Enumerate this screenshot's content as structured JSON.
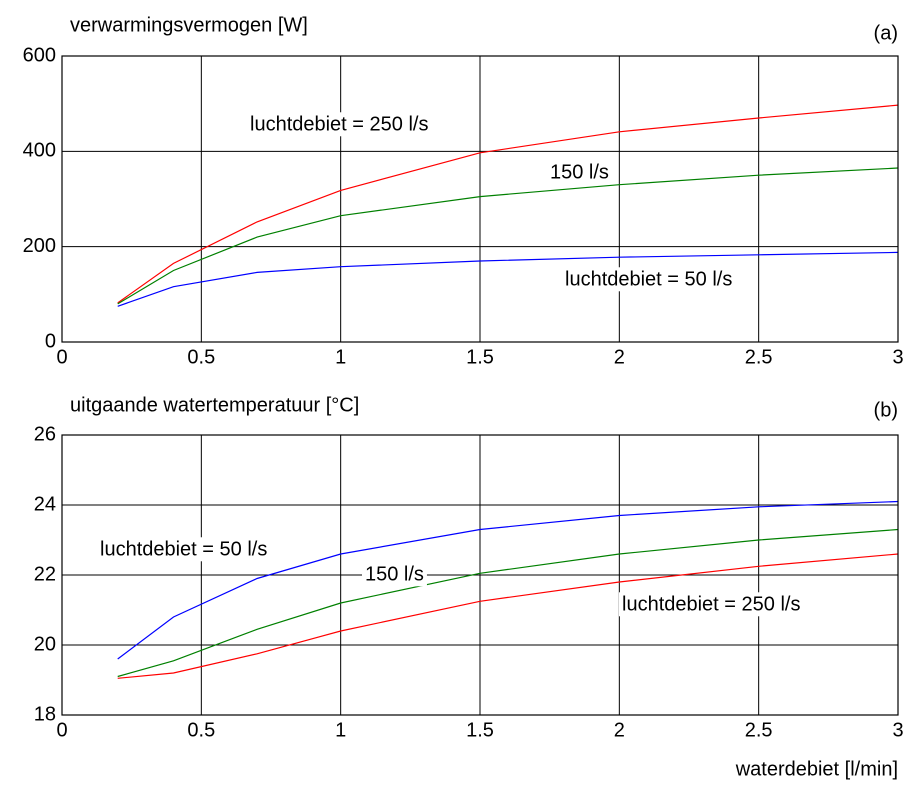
{
  "chart_data": [
    {
      "type": "line",
      "ylabel": "verwarmingsvermogen [W]",
      "panel_label": "(a)",
      "x": [
        0.2,
        0.4,
        0.7,
        1.0,
        1.5,
        2.0,
        2.5,
        3.0
      ],
      "series": [
        {
          "name": "luchtdebiet = 250 l/s",
          "color": "#ff0000",
          "values": [
            82,
            165,
            252,
            318,
            397,
            441,
            470,
            497
          ]
        },
        {
          "name": "150 l/s",
          "color": "#008000",
          "values": [
            80,
            150,
            220,
            265,
            305,
            330,
            350,
            365
          ]
        },
        {
          "name": "luchtdebiet = 50 l/s",
          "color": "#0000ff",
          "values": [
            75,
            116,
            146,
            158,
            170,
            178,
            183,
            188
          ]
        }
      ],
      "xlim": [
        0,
        3
      ],
      "xticks": [
        0,
        0.5,
        1,
        1.5,
        2,
        2.5,
        3
      ],
      "ylim": [
        0,
        600
      ],
      "yticks": [
        0,
        200,
        400,
        600
      ],
      "grid": true
    },
    {
      "type": "line",
      "ylabel": "uitgaande watertemperatuur [°C]",
      "panel_label": "(b)",
      "xlabel": "waterdebiet [l/min]",
      "x": [
        0.2,
        0.4,
        0.7,
        1.0,
        1.5,
        2.0,
        2.5,
        3.0
      ],
      "series": [
        {
          "name": "luchtdebiet = 250 l/s",
          "color": "#ff0000",
          "values": [
            19.05,
            19.2,
            19.75,
            20.4,
            21.25,
            21.8,
            22.25,
            22.6
          ]
        },
        {
          "name": "150 l/s",
          "color": "#008000",
          "values": [
            19.1,
            19.55,
            20.45,
            21.2,
            22.05,
            22.6,
            23.0,
            23.3
          ]
        },
        {
          "name": "luchtdebiet = 50 l/s",
          "color": "#0000ff",
          "values": [
            19.6,
            20.8,
            21.9,
            22.6,
            23.3,
            23.7,
            23.95,
            24.1
          ]
        }
      ],
      "xlim": [
        0,
        3
      ],
      "xticks": [
        0,
        0.5,
        1,
        1.5,
        2,
        2.5,
        3
      ],
      "ylim": [
        18,
        26
      ],
      "yticks": [
        18,
        20,
        22,
        24,
        26
      ],
      "grid": true
    }
  ]
}
